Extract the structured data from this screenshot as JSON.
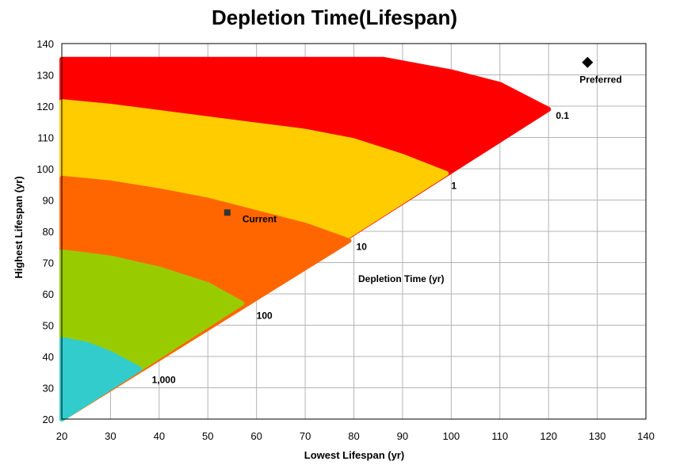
{
  "chart_data": {
    "type": "area",
    "title": "Depletion Time(Lifespan)",
    "xlabel": "Lowest Lifespan (yr)",
    "ylabel": "Highest Lifespan (yr)",
    "xlim": [
      20,
      140
    ],
    "ylim": [
      20,
      140
    ],
    "x_ticks": [
      20,
      30,
      40,
      50,
      60,
      70,
      80,
      90,
      100,
      110,
      120,
      130,
      140
    ],
    "y_ticks": [
      20,
      30,
      40,
      50,
      60,
      70,
      80,
      90,
      100,
      110,
      120,
      130,
      140
    ],
    "grid": true,
    "legend_title": "Depletion Time (yr)",
    "colors": {
      "0.1": "#ff0000",
      "1": "#ffcc00",
      "10": "#ff6600",
      "100": "#99cc00",
      "1,000": "#33cccc",
      "markers": "#000000",
      "current_marker": "#333333"
    },
    "bands": [
      {
        "label": "0.1",
        "color": "#ff0000",
        "boundary": [
          [
            20,
            135
          ],
          [
            30,
            135
          ],
          [
            40,
            135
          ],
          [
            50,
            135
          ],
          [
            60,
            135
          ],
          [
            70,
            135
          ],
          [
            80,
            135
          ],
          [
            86,
            135
          ],
          [
            100,
            131
          ],
          [
            110,
            127
          ],
          [
            120,
            119
          ]
        ]
      },
      {
        "label": "1",
        "color": "#ffcc00",
        "boundary": [
          [
            20,
            121.5
          ],
          [
            30,
            120
          ],
          [
            40,
            118
          ],
          [
            50,
            116
          ],
          [
            60,
            114
          ],
          [
            70,
            112
          ],
          [
            80,
            109
          ],
          [
            90,
            104
          ],
          [
            99,
            98.5
          ]
        ]
      },
      {
        "label": "10",
        "color": "#ff6600",
        "boundary": [
          [
            20,
            97
          ],
          [
            30,
            95.5
          ],
          [
            40,
            93
          ],
          [
            50,
            90
          ],
          [
            60,
            86
          ],
          [
            70,
            82
          ],
          [
            79,
            77
          ]
        ]
      },
      {
        "label": "100",
        "color": "#99cc00",
        "boundary": [
          [
            20,
            73.5
          ],
          [
            30,
            71.5
          ],
          [
            40,
            68
          ],
          [
            50,
            63
          ],
          [
            57,
            57
          ]
        ]
      },
      {
        "label": "1,000",
        "color": "#33cccc",
        "boundary": [
          [
            20,
            45.5
          ],
          [
            25,
            44
          ],
          [
            30,
            41
          ],
          [
            36,
            36
          ]
        ]
      }
    ],
    "contour_labels": [
      {
        "text": "0.1",
        "x": 121.5,
        "y": 116
      },
      {
        "text": "1",
        "x": 100,
        "y": 93.5
      },
      {
        "text": "10",
        "x": 80.5,
        "y": 74
      },
      {
        "text": "100",
        "x": 60,
        "y": 52
      },
      {
        "text": "1,000",
        "x": 38.5,
        "y": 31.5
      }
    ],
    "points": [
      {
        "label": "Current",
        "x": 54,
        "y": 86,
        "marker": "square"
      },
      {
        "label": "Preferred",
        "x": 128,
        "y": 134,
        "marker": "diamond"
      }
    ]
  }
}
